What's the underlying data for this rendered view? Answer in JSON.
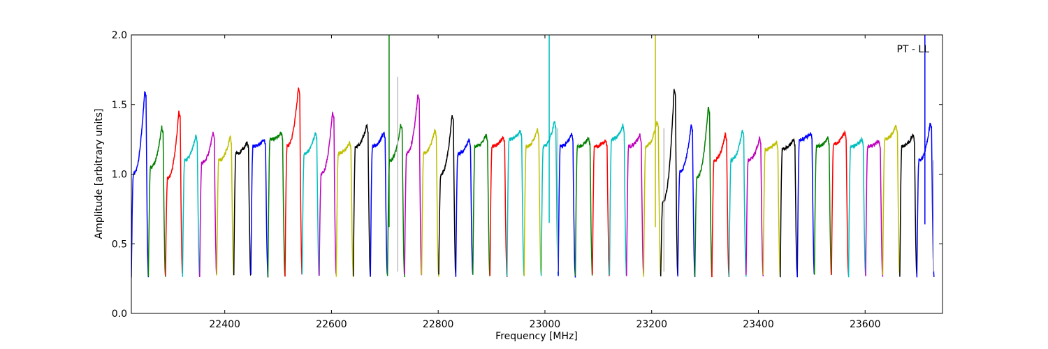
{
  "chart_data": {
    "type": "line",
    "title": "",
    "annotation": "PT - LL",
    "xlabel": "Frequency [MHz]",
    "ylabel": "Amplitude [arbitrary units]",
    "xlim": [
      22225,
      23745
    ],
    "ylim": [
      0.0,
      2.0
    ],
    "xticks": [
      22400,
      22600,
      22800,
      23000,
      23200,
      23400,
      23600
    ],
    "xtick_labels": [
      "22400",
      "22600",
      "22800",
      "23000",
      "23200",
      "23400",
      "23600"
    ],
    "yticks": [
      0.0,
      0.5,
      1.0,
      1.5,
      2.0
    ],
    "ytick_labels": [
      "0.0",
      "0.5",
      "1.0",
      "1.5",
      "2.0"
    ],
    "grid": false,
    "legend": "none",
    "color_cycle": [
      "#0000ff",
      "#008000",
      "#ff0000",
      "#00bfbf",
      "#bf00bf",
      "#bfbf00",
      "#000000"
    ],
    "band_width_mhz": 32,
    "bands": [
      {
        "start": 22225,
        "level": 1.0,
        "peak": 1.6,
        "color": "#0000ff"
      },
      {
        "start": 22257,
        "level": 1.05,
        "peak": 1.34,
        "color": "#008000"
      },
      {
        "start": 22289,
        "level": 0.97,
        "peak": 1.45,
        "color": "#ff0000"
      },
      {
        "start": 22321,
        "level": 1.1,
        "peak": 1.28,
        "color": "#00bfbf"
      },
      {
        "start": 22353,
        "level": 1.08,
        "peak": 1.3,
        "color": "#bf00bf"
      },
      {
        "start": 22385,
        "level": 1.1,
        "peak": 1.27,
        "color": "#bfbf00"
      },
      {
        "start": 22417,
        "level": 1.15,
        "peak": 1.23,
        "color": "#000000"
      },
      {
        "start": 22449,
        "level": 1.2,
        "peak": 1.25,
        "color": "#0000ff"
      },
      {
        "start": 22481,
        "level": 1.25,
        "peak": 1.3,
        "color": "#008000"
      },
      {
        "start": 22513,
        "level": 1.2,
        "peak": 1.62,
        "color": "#ff0000"
      },
      {
        "start": 22545,
        "level": 1.15,
        "peak": 1.3,
        "color": "#00bfbf"
      },
      {
        "start": 22577,
        "level": 1.0,
        "peak": 1.45,
        "color": "#bf00bf"
      },
      {
        "start": 22609,
        "level": 1.15,
        "peak": 1.23,
        "color": "#bfbf00"
      },
      {
        "start": 22641,
        "level": 1.2,
        "peak": 1.35,
        "color": "#000000"
      },
      {
        "start": 22673,
        "level": 1.2,
        "peak": 1.3,
        "color": "#0000ff"
      },
      {
        "start": 22705,
        "level": 1.1,
        "peak": 1.36,
        "color": "#008000"
      },
      {
        "start": 22737,
        "level": 1.15,
        "peak": 1.58,
        "color": "#bf00bf"
      },
      {
        "start": 22769,
        "level": 1.15,
        "peak": 1.32,
        "color": "#bfbf00"
      },
      {
        "start": 22801,
        "level": 1.0,
        "peak": 1.43,
        "color": "#000000"
      },
      {
        "start": 22833,
        "level": 1.15,
        "peak": 1.25,
        "color": "#0000ff"
      },
      {
        "start": 22865,
        "level": 1.2,
        "peak": 1.28,
        "color": "#008000"
      },
      {
        "start": 22897,
        "level": 1.2,
        "peak": 1.27,
        "color": "#ff0000"
      },
      {
        "start": 22929,
        "level": 1.25,
        "peak": 1.31,
        "color": "#00bfbf"
      },
      {
        "start": 22961,
        "level": 1.2,
        "peak": 1.32,
        "color": "#bfbf00"
      },
      {
        "start": 22993,
        "level": 1.2,
        "peak": 1.38,
        "color": "#00bfbf"
      },
      {
        "start": 23025,
        "level": 1.2,
        "peak": 1.29,
        "color": "#0000ff"
      },
      {
        "start": 23057,
        "level": 1.2,
        "peak": 1.26,
        "color": "#008000"
      },
      {
        "start": 23089,
        "level": 1.2,
        "peak": 1.24,
        "color": "#ff0000"
      },
      {
        "start": 23121,
        "level": 1.25,
        "peak": 1.35,
        "color": "#00bfbf"
      },
      {
        "start": 23153,
        "level": 1.2,
        "peak": 1.28,
        "color": "#bf00bf"
      },
      {
        "start": 23185,
        "level": 1.2,
        "peak": 1.38,
        "color": "#bfbf00"
      },
      {
        "start": 23217,
        "level": 0.8,
        "peak": 1.61,
        "color": "#000000"
      },
      {
        "start": 23249,
        "level": 1.02,
        "peak": 1.36,
        "color": "#0000ff"
      },
      {
        "start": 23281,
        "level": 0.98,
        "peak": 1.48,
        "color": "#008000"
      },
      {
        "start": 23313,
        "level": 1.1,
        "peak": 1.29,
        "color": "#ff0000"
      },
      {
        "start": 23345,
        "level": 1.1,
        "peak": 1.32,
        "color": "#00bfbf"
      },
      {
        "start": 23377,
        "level": 1.1,
        "peak": 1.26,
        "color": "#bf00bf"
      },
      {
        "start": 23409,
        "level": 1.18,
        "peak": 1.23,
        "color": "#bfbf00"
      },
      {
        "start": 23441,
        "level": 1.18,
        "peak": 1.25,
        "color": "#000000"
      },
      {
        "start": 23473,
        "level": 1.25,
        "peak": 1.3,
        "color": "#0000ff"
      },
      {
        "start": 23505,
        "level": 1.2,
        "peak": 1.26,
        "color": "#008000"
      },
      {
        "start": 23537,
        "level": 1.22,
        "peak": 1.3,
        "color": "#ff0000"
      },
      {
        "start": 23569,
        "level": 1.2,
        "peak": 1.25,
        "color": "#00bfbf"
      },
      {
        "start": 23601,
        "level": 1.2,
        "peak": 1.24,
        "color": "#bf00bf"
      },
      {
        "start": 23633,
        "level": 1.25,
        "peak": 1.35,
        "color": "#bfbf00"
      },
      {
        "start": 23665,
        "level": 1.2,
        "peak": 1.28,
        "color": "#000000"
      },
      {
        "start": 23697,
        "level": 1.1,
        "peak": 1.37,
        "color": "#0000ff"
      }
    ],
    "spikes": [
      {
        "x": 22708,
        "y_from": 0.62,
        "y_to": 2.0,
        "color": "#008000"
      },
      {
        "x": 22724,
        "y_from": 0.3,
        "y_to": 1.7,
        "color": "#bfbfbf"
      },
      {
        "x": 23008,
        "y_from": 0.65,
        "y_to": 2.0,
        "color": "#00bfbf"
      },
      {
        "x": 23024,
        "y_from": 0.3,
        "y_to": 1.33,
        "color": "#bfbfbf"
      },
      {
        "x": 23207,
        "y_from": 0.62,
        "y_to": 2.0,
        "color": "#bfbf00"
      },
      {
        "x": 23223,
        "y_from": 0.3,
        "y_to": 1.33,
        "color": "#bfbfbf"
      },
      {
        "x": 23712,
        "y_from": 0.64,
        "y_to": 2.0,
        "color": "#0000ff"
      },
      {
        "x": 23728,
        "y_from": 0.3,
        "y_to": 1.1,
        "color": "#bfbfbf"
      }
    ]
  }
}
